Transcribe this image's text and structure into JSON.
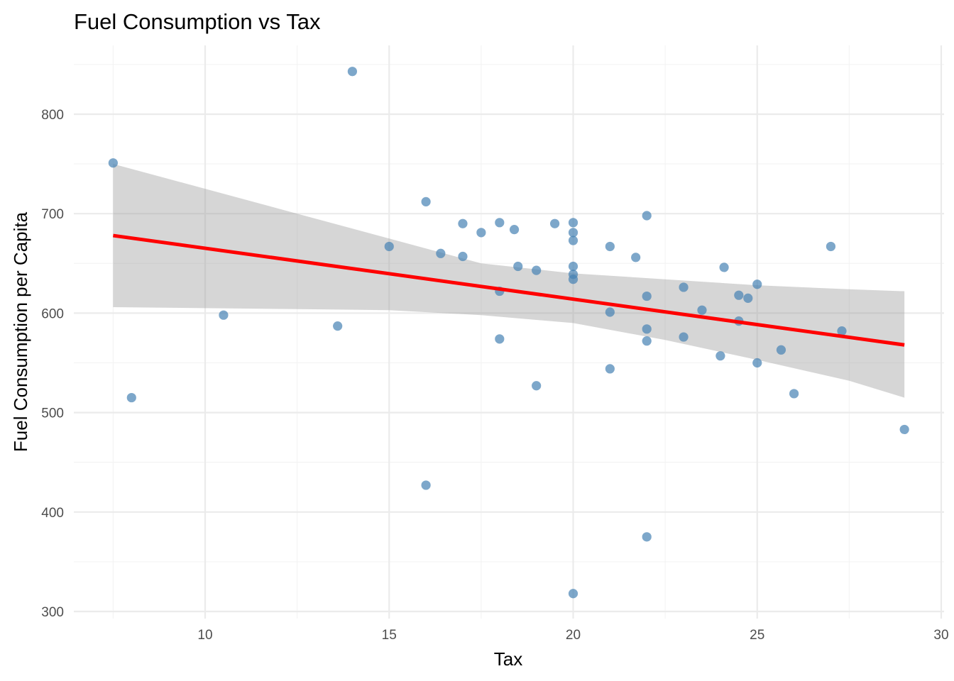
{
  "chart_data": {
    "type": "scatter",
    "title": "Fuel Consumption vs Tax",
    "xlabel": "Tax",
    "ylabel": "Fuel Consumption per Capita",
    "xlim": [
      6.5,
      30
    ],
    "ylim": [
      292,
      867
    ],
    "x_ticks": [
      10,
      15,
      20,
      25,
      30
    ],
    "x_tick_labels": [
      "10",
      "15",
      "20",
      "25",
      "30"
    ],
    "y_ticks": [
      300,
      400,
      500,
      600,
      700,
      800
    ],
    "y_tick_labels": [
      "300",
      "400",
      "500",
      "600",
      "700",
      "800"
    ],
    "grid": true,
    "legend": "none",
    "colors": {
      "points": "#4682b4",
      "trend_line": "#ff0000",
      "confidence_band": "#999999"
    },
    "points": [
      {
        "x": 7.5,
        "y": 751
      },
      {
        "x": 8.0,
        "y": 515
      },
      {
        "x": 10.5,
        "y": 598
      },
      {
        "x": 13.6,
        "y": 587
      },
      {
        "x": 14.0,
        "y": 843
      },
      {
        "x": 15.0,
        "y": 667
      },
      {
        "x": 16.0,
        "y": 712
      },
      {
        "x": 16.0,
        "y": 427
      },
      {
        "x": 16.4,
        "y": 660
      },
      {
        "x": 17.0,
        "y": 690
      },
      {
        "x": 17.0,
        "y": 657
      },
      {
        "x": 17.5,
        "y": 681
      },
      {
        "x": 18.0,
        "y": 691
      },
      {
        "x": 18.0,
        "y": 622
      },
      {
        "x": 18.0,
        "y": 574
      },
      {
        "x": 18.4,
        "y": 684
      },
      {
        "x": 18.5,
        "y": 647
      },
      {
        "x": 19.0,
        "y": 643
      },
      {
        "x": 19.0,
        "y": 527
      },
      {
        "x": 19.5,
        "y": 690
      },
      {
        "x": 20.0,
        "y": 691
      },
      {
        "x": 20.0,
        "y": 681
      },
      {
        "x": 20.0,
        "y": 673
      },
      {
        "x": 20.0,
        "y": 647
      },
      {
        "x": 20.0,
        "y": 639
      },
      {
        "x": 20.0,
        "y": 634
      },
      {
        "x": 20.0,
        "y": 318
      },
      {
        "x": 21.0,
        "y": 667
      },
      {
        "x": 21.0,
        "y": 601
      },
      {
        "x": 21.0,
        "y": 544
      },
      {
        "x": 21.7,
        "y": 656
      },
      {
        "x": 22.0,
        "y": 698
      },
      {
        "x": 22.0,
        "y": 617
      },
      {
        "x": 22.0,
        "y": 584
      },
      {
        "x": 22.0,
        "y": 572
      },
      {
        "x": 22.0,
        "y": 375
      },
      {
        "x": 23.0,
        "y": 626
      },
      {
        "x": 23.0,
        "y": 576
      },
      {
        "x": 23.5,
        "y": 603
      },
      {
        "x": 24.0,
        "y": 557
      },
      {
        "x": 24.1,
        "y": 646
      },
      {
        "x": 24.5,
        "y": 618
      },
      {
        "x": 24.5,
        "y": 592
      },
      {
        "x": 24.75,
        "y": 615
      },
      {
        "x": 25.0,
        "y": 629
      },
      {
        "x": 25.0,
        "y": 550
      },
      {
        "x": 25.65,
        "y": 563
      },
      {
        "x": 26.0,
        "y": 519
      },
      {
        "x": 27.0,
        "y": 667
      },
      {
        "x": 27.3,
        "y": 582
      },
      {
        "x": 29.0,
        "y": 483
      }
    ],
    "trend_line": {
      "x": [
        7.5,
        29.0
      ],
      "y": [
        678,
        568
      ]
    },
    "confidence_band": [
      {
        "x": 7.5,
        "lower": 606,
        "upper": 750
      },
      {
        "x": 10.0,
        "lower": 605,
        "upper": 725
      },
      {
        "x": 12.5,
        "lower": 604,
        "upper": 700
      },
      {
        "x": 15.0,
        "lower": 603,
        "upper": 675
      },
      {
        "x": 17.5,
        "lower": 598,
        "upper": 650
      },
      {
        "x": 20.0,
        "lower": 590,
        "upper": 640
      },
      {
        "x": 22.5,
        "lower": 573,
        "upper": 634
      },
      {
        "x": 25.0,
        "lower": 553,
        "upper": 628
      },
      {
        "x": 27.5,
        "lower": 532,
        "upper": 624
      },
      {
        "x": 29.0,
        "lower": 515,
        "upper": 622
      }
    ]
  }
}
